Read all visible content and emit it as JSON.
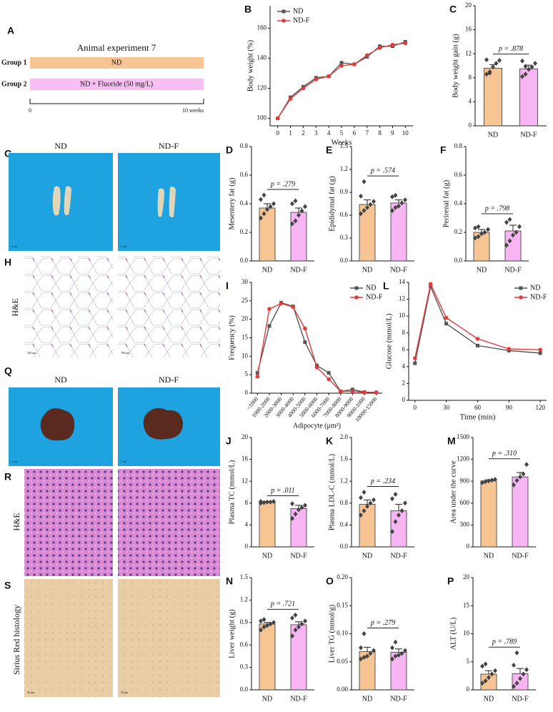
{
  "diagram": {
    "panel": "A",
    "title": "Animal experiment 7",
    "groups": [
      {
        "label": "Group 1",
        "treatment": "ND"
      },
      {
        "label": "Group 2",
        "treatment": "ND + Fluoride (50 mg/L)"
      }
    ],
    "timeline": [
      "0",
      "10 weeks"
    ]
  },
  "images": {
    "G": {
      "panel": "G",
      "labels": [
        "ND",
        "ND-F"
      ],
      "scale": "1 cm"
    },
    "H": {
      "panel": "H",
      "stain": "H&E",
      "scale": "100 μm"
    },
    "Q": {
      "panel": "Q",
      "labels": [
        "ND",
        "ND-F"
      ],
      "scale": "1 cm"
    },
    "R": {
      "panel": "R",
      "stain": "H&E"
    },
    "S": {
      "panel": "S",
      "stain": "Sirius Red histology",
      "scale": "50 μm"
    }
  },
  "chart_data": [
    {
      "panel": "B",
      "type": "line",
      "xlabel": "Weeks",
      "ylabel": "Body weight (%)",
      "x": [
        0,
        1,
        2,
        3,
        4,
        5,
        6,
        7,
        8,
        9,
        10
      ],
      "xlim": [
        -0.6,
        10.6
      ],
      "xticks": [
        0,
        1,
        2,
        3,
        4,
        5,
        6,
        7,
        8,
        9,
        10
      ],
      "ylim": [
        95,
        175
      ],
      "yticks": [
        100,
        120,
        140,
        160
      ],
      "legend": "top-left",
      "series": [
        {
          "name": "ND",
          "color": "#555555",
          "marker": "square",
          "values": [
            100,
            114,
            121,
            127,
            128,
            137,
            136,
            141,
            148,
            148,
            151
          ]
        },
        {
          "name": "ND-F",
          "color": "#e03c3c",
          "marker": "circle",
          "values": [
            100,
            113,
            120,
            126,
            128,
            135,
            136,
            142,
            147,
            149,
            150
          ]
        }
      ]
    },
    {
      "panel": "C",
      "type": "bar",
      "ylabel": "Body weight gain (g)",
      "categories": [
        "ND",
        "ND-F"
      ],
      "colors": [
        "#f7c594",
        "#f7b5f3"
      ],
      "values": [
        9.6,
        9.5
      ],
      "errors": [
        0.6,
        0.6
      ],
      "points": [
        [
          8.6,
          9.0,
          9.8,
          10.4,
          10.9,
          11.0,
          8.8
        ],
        [
          8.2,
          8.6,
          9.4,
          9.8,
          10.4,
          10.8,
          9.9
        ]
      ],
      "annotation": "p = .878",
      "ylim": [
        0,
        20
      ],
      "yticks": [
        0,
        4,
        8,
        12,
        16,
        20
      ]
    },
    {
      "panel": "D",
      "type": "bar",
      "ylabel": "Mesentery fat (g)",
      "categories": [
        "ND",
        "ND-F"
      ],
      "colors": [
        "#f7c594",
        "#f7b5f3"
      ],
      "values": [
        0.37,
        0.34
      ],
      "errors": [
        0.03,
        0.03
      ],
      "points": [
        [
          0.3,
          0.33,
          0.36,
          0.38,
          0.4,
          0.43,
          0.46
        ],
        [
          0.26,
          0.28,
          0.32,
          0.35,
          0.38,
          0.4,
          0.42
        ]
      ],
      "annotation": "p = .279",
      "ylim": [
        0,
        0.8
      ],
      "yticks": [
        {
          "value": 0,
          "label": "0.0"
        },
        0.2,
        0.4,
        0.6,
        0.8
      ]
    },
    {
      "panel": "E",
      "type": "bar",
      "ylabel": "Epididymal fat (g)",
      "categories": [
        "ND",
        "ND-F"
      ],
      "colors": [
        "#f7c594",
        "#f7b5f3"
      ],
      "values": [
        0.74,
        0.76
      ],
      "errors": [
        0.06,
        0.04
      ],
      "points": [
        [
          0.62,
          0.66,
          0.7,
          0.74,
          0.78,
          0.85,
          1.04
        ],
        [
          0.66,
          0.7,
          0.72,
          0.76,
          0.8,
          0.84,
          0.86
        ]
      ],
      "annotation": "p = .574",
      "ylim": [
        0,
        1.5
      ],
      "yticks": [
        {
          "value": 0,
          "label": "0.0"
        },
        0.3,
        0.6,
        0.9,
        1.2,
        1.5
      ]
    },
    {
      "panel": "F",
      "type": "bar",
      "ylabel": "Perirenal fat (g)",
      "categories": [
        "ND",
        "ND-F"
      ],
      "colors": [
        "#f7c594",
        "#f7b5f3"
      ],
      "values": [
        0.2,
        0.21
      ],
      "errors": [
        0.02,
        0.04
      ],
      "points": [
        [
          0.16,
          0.17,
          0.19,
          0.2,
          0.22,
          0.23,
          0.24
        ],
        [
          0.11,
          0.14,
          0.18,
          0.2,
          0.24,
          0.27,
          0.29
        ]
      ],
      "annotation": "p = .798",
      "ylim": [
        0,
        0.8
      ],
      "yticks": [
        {
          "value": 0,
          "label": "0.0"
        },
        0.2,
        0.4,
        0.6,
        0.8
      ]
    },
    {
      "panel": "I",
      "type": "line",
      "xlabel": "Adipocyte (μm²)",
      "ylabel": "Frequency (%)",
      "categories": [
        "<1000",
        "1000-2000",
        "2000-3000",
        "3000-4000",
        "4000-5000",
        "5000-6000",
        "6000-7000",
        "7000-8000",
        "8000-9000",
        "9000-1000",
        "10000-15000"
      ],
      "ylim": [
        0,
        30
      ],
      "yticks": [
        0,
        5,
        10,
        15,
        20,
        25,
        30
      ],
      "legend": "top-right",
      "series": [
        {
          "name": "ND",
          "color": "#555555",
          "marker": "square",
          "values": [
            5.5,
            18.2,
            24.5,
            23.5,
            13.8,
            7.5,
            5.5,
            0.5,
            1.0,
            0.3,
            0.2
          ]
        },
        {
          "name": "ND-F",
          "color": "#e03c3c",
          "marker": "circle",
          "values": [
            4.5,
            22.8,
            24.3,
            23.3,
            17.5,
            7.0,
            3.8,
            0.5,
            0.5,
            0.2,
            0.2
          ]
        }
      ]
    },
    {
      "panel": "L",
      "type": "line",
      "xlabel": "Time (min)",
      "ylabel": "Glucose (mmol/L)",
      "x": [
        0,
        15,
        30,
        60,
        90,
        120
      ],
      "xlim": [
        -6,
        126
      ],
      "xticks": [
        0,
        30,
        60,
        90,
        120
      ],
      "ylim": [
        0,
        14
      ],
      "yticks": [
        0,
        2,
        4,
        6,
        8,
        10,
        12,
        14
      ],
      "legend": "top-right",
      "series": [
        {
          "name": "ND",
          "color": "#555555",
          "marker": "square",
          "values": [
            4.4,
            13.5,
            9.1,
            6.5,
            5.9,
            5.6
          ]
        },
        {
          "name": "ND-F",
          "color": "#e03c3c",
          "marker": "circle",
          "values": [
            5.0,
            13.8,
            9.8,
            7.3,
            6.1,
            6.0
          ]
        }
      ]
    },
    {
      "panel": "J",
      "type": "bar",
      "ylabel": "Plasma TC (mmol/L)",
      "categories": [
        "ND",
        "ND-F"
      ],
      "colors": [
        "#f7c594",
        "#f7b5f3"
      ],
      "values": [
        8.2,
        7.0
      ],
      "errors": [
        0.1,
        0.6
      ],
      "points": [
        [
          8.0,
          8.1,
          8.2,
          8.2,
          8.3,
          8.3
        ],
        [
          5.2,
          6.0,
          6.8,
          7.2,
          7.6,
          7.9
        ]
      ],
      "annotation": "p = .011",
      "ylim": [
        0,
        20
      ],
      "yticks": [
        0,
        4,
        8,
        12,
        16,
        20
      ]
    },
    {
      "panel": "K",
      "type": "bar",
      "ylabel": "Plasma LDL-C (mmol/L)",
      "categories": [
        "ND",
        "ND-F"
      ],
      "colors": [
        "#f7c594",
        "#f7b5f3"
      ],
      "values": [
        0.78,
        0.66
      ],
      "errors": [
        0.08,
        0.12
      ],
      "points": [
        [
          0.58,
          0.66,
          0.74,
          0.8,
          0.86,
          0.9,
          1.0
        ],
        [
          0.28,
          0.46,
          0.58,
          0.66,
          0.8,
          0.88,
          0.96
        ]
      ],
      "annotation": "p = .234",
      "ylim": [
        0,
        2
      ],
      "yticks": [
        {
          "value": 0,
          "label": "0.0"
        },
        0.4,
        0.8,
        1.2,
        1.6,
        {
          "value": 2,
          "label": "2.0"
        }
      ]
    },
    {
      "panel": "M",
      "type": "bar",
      "ylabel": "Area under the curve",
      "categories": [
        "ND",
        "ND-F"
      ],
      "colors": [
        "#f7c594",
        "#f7b5f3"
      ],
      "values": [
        905,
        960
      ],
      "errors": [
        15,
        60
      ],
      "points": [
        [
          880,
          895,
          905,
          915,
          925
        ],
        [
          850,
          910,
          960,
          1000,
          1130
        ]
      ],
      "annotation": "p = .310",
      "ylim": [
        0,
        1500
      ],
      "yticks": [
        0,
        300,
        600,
        900,
        1200,
        1500
      ]
    },
    {
      "panel": "N",
      "type": "bar",
      "ylabel": "Liver weight (g)",
      "categories": [
        "ND",
        "ND-F"
      ],
      "colors": [
        "#f7c594",
        "#f7b5f3"
      ],
      "values": [
        0.88,
        0.87
      ],
      "errors": [
        0.02,
        0.04
      ],
      "points": [
        [
          0.8,
          0.84,
          0.86,
          0.88,
          0.9,
          0.92,
          0.94
        ],
        [
          0.72,
          0.8,
          0.84,
          0.88,
          0.92,
          0.96,
          1.0
        ]
      ],
      "annotation": "p = .721",
      "ylim": [
        0,
        1.5
      ],
      "yticks": [
        {
          "value": 0,
          "label": "0.0"
        },
        0.3,
        0.6,
        0.9,
        1.2,
        1.5
      ]
    },
    {
      "panel": "O",
      "type": "bar",
      "ylabel": "Liver TG (mmol/g)",
      "categories": [
        "ND",
        "ND-F"
      ],
      "colors": [
        "#f7c594",
        "#f7b5f3"
      ],
      "values": [
        0.068,
        0.067
      ],
      "errors": [
        0.008,
        0.006
      ],
      "points": [
        [
          0.055,
          0.058,
          0.06,
          0.065,
          0.07,
          0.075,
          0.1
        ],
        [
          0.055,
          0.06,
          0.062,
          0.065,
          0.07,
          0.075,
          0.085
        ]
      ],
      "annotation": "p = .279",
      "ylim": [
        0,
        0.2
      ],
      "yticks": [
        {
          "value": 0,
          "label": "0.00"
        },
        0.05,
        {
          "value": 0.1,
          "label": "0.10"
        },
        0.15,
        {
          "value": 0.2,
          "label": "0.20"
        }
      ]
    },
    {
      "panel": "P",
      "type": "bar",
      "ylabel": "ALT (U/L)",
      "categories": [
        "ND",
        "ND-F"
      ],
      "colors": [
        "#f7c594",
        "#f7b5f3"
      ],
      "values": [
        2.8,
        2.9
      ],
      "errors": [
        0.6,
        0.9
      ],
      "points": [
        [
          1.2,
          1.6,
          2.2,
          2.8,
          3.4,
          4.2,
          4.6
        ],
        [
          0.6,
          1.2,
          2.0,
          2.8,
          3.6,
          4.4,
          6.6
        ]
      ],
      "annotation": "p = .789",
      "ylim": [
        0,
        20
      ],
      "yticks": [
        0,
        5,
        10,
        15,
        20
      ]
    }
  ]
}
